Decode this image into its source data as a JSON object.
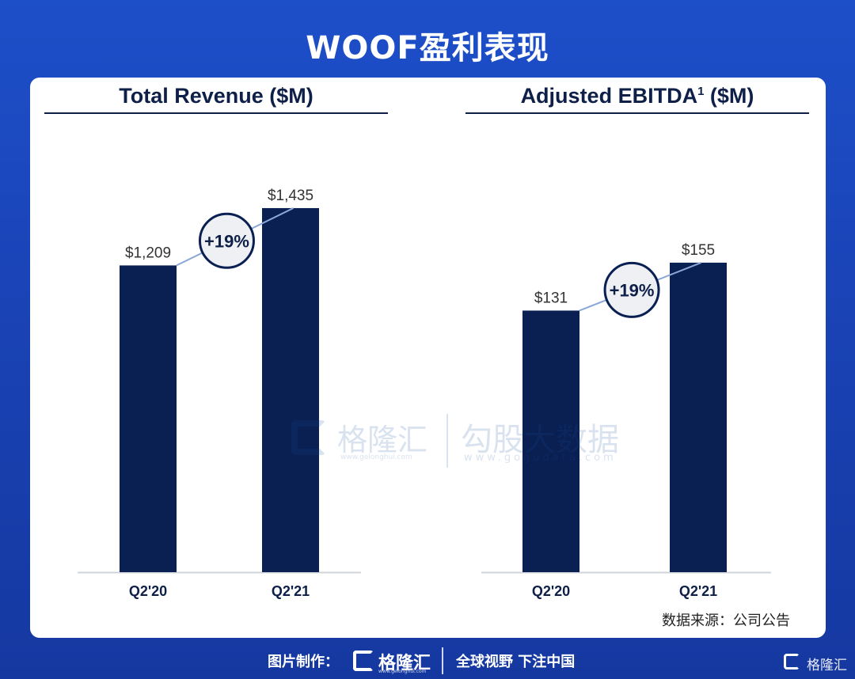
{
  "page": {
    "title": "WOOF盈利表现",
    "source_note": "数据来源：公司公告"
  },
  "watermark": {
    "brand1": "格隆汇",
    "brand1_url": "www.gelonghui.com",
    "brand2": "勾股大数据",
    "brand2_url": "www.gogudata.com"
  },
  "footer": {
    "credit": "图片制作：",
    "logo_text": "格隆汇",
    "logo_sub": "www.gelonghui.com",
    "slogan": "全球视野 下注中国",
    "corner_brand": "格隆汇"
  },
  "colors": {
    "bar": "#0a1f52",
    "connector": "#8aa7d6",
    "badge_fill": "#eef0f4",
    "badge_stroke": "#0a1f52"
  },
  "chart_data": [
    {
      "type": "bar",
      "title": "Total Revenue ($M)",
      "categories": [
        "Q2'20",
        "Q2'21"
      ],
      "values": [
        1209,
        1435
      ],
      "value_labels": [
        "$1,209",
        "$1,435"
      ],
      "growth_label": "+19%",
      "ylim": [
        0,
        1700
      ]
    },
    {
      "type": "bar",
      "title": "Adjusted EBITDA",
      "title_superscript": "1",
      "title_suffix": " ($M)",
      "categories": [
        "Q2'20",
        "Q2'21"
      ],
      "values": [
        131,
        155
      ],
      "value_labels": [
        "$131",
        "$155"
      ],
      "growth_label": "+19%",
      "ylim": [
        0,
        216
      ]
    }
  ]
}
